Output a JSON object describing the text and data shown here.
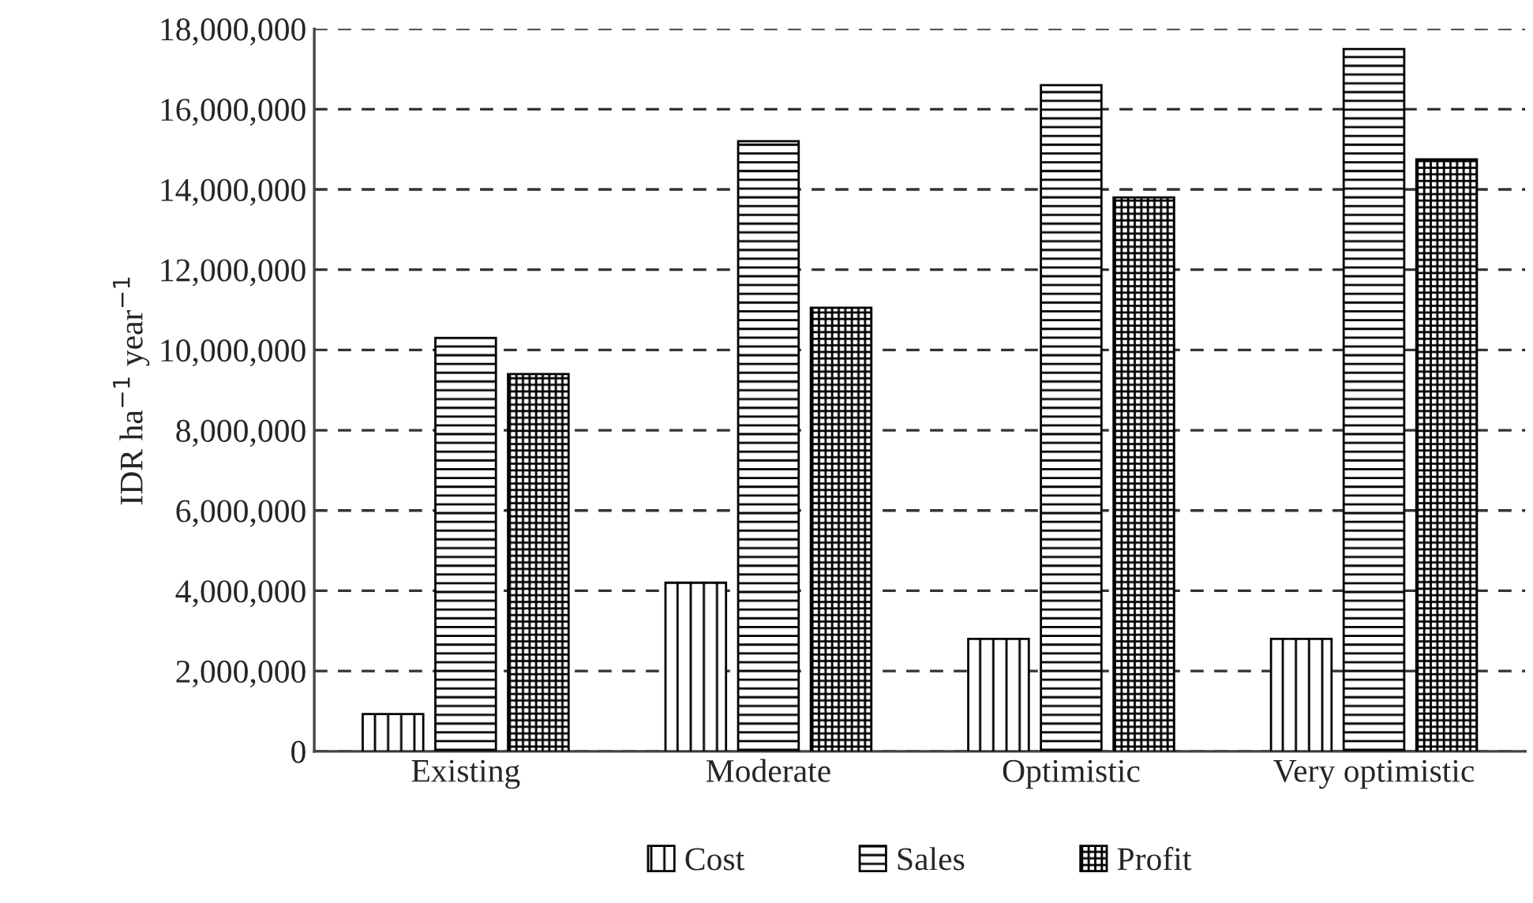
{
  "chart_data": {
    "type": "bar",
    "ylabel": "IDR ha$^{−1}$ year$^{−1}$",
    "categories": [
      "Existing",
      "Moderate",
      "Optimistic",
      "Very optimistic"
    ],
    "series": [
      {
        "name": "Cost",
        "color": "#000000",
        "values": [
          930000,
          4200000,
          2800000,
          2800000
        ]
      },
      {
        "name": "Sales",
        "color": "#000000",
        "values": [
          10300000,
          15200000,
          16600000,
          17500000
        ]
      },
      {
        "name": "Profit",
        "color": "#000000",
        "values": [
          9400000,
          11050000,
          13800000,
          14750000
        ]
      }
    ],
    "ylim": [
      0,
      18000000
    ],
    "yticks": [
      {
        "value": 0,
        "label": "0"
      },
      {
        "value": 2000000,
        "label": "2,000,000"
      },
      {
        "value": 4000000,
        "label": "4,000,000"
      },
      {
        "value": 6000000,
        "label": "6,000,000"
      },
      {
        "value": 8000000,
        "label": "8,000,000"
      },
      {
        "value": 10000000,
        "label": "10,000,000"
      },
      {
        "value": 12000000,
        "label": "12,000,000"
      },
      {
        "value": 14000000,
        "label": "14,000,000"
      },
      {
        "value": 16000000,
        "label": "16,000,000"
      },
      {
        "value": 18000000,
        "label": "18,000,000"
      }
    ],
    "grid": "y",
    "legend": "bottom"
  }
}
